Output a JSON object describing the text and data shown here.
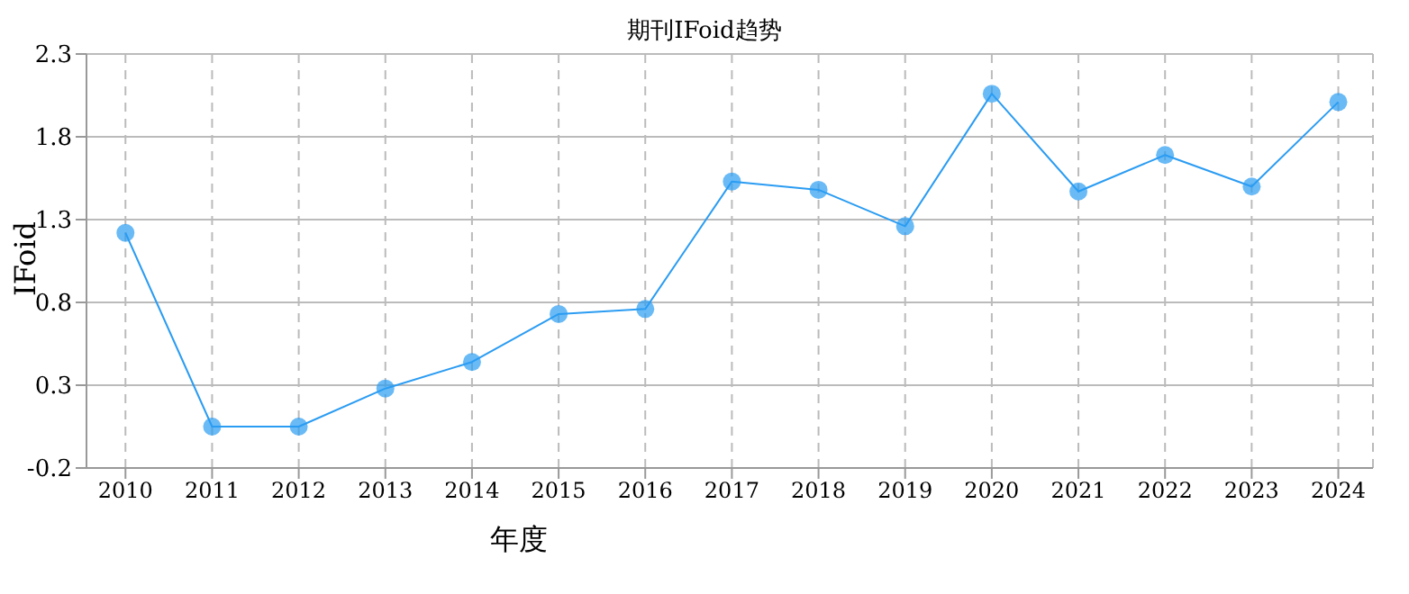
{
  "chart_data": {
    "type": "line",
    "title": "期刊IFoid趋势",
    "xlabel": "年度",
    "ylabel": "IFoid",
    "categories": [
      "2010",
      "2011",
      "2012",
      "2013",
      "2014",
      "2015",
      "2016",
      "2017",
      "2018",
      "2019",
      "2020",
      "2021",
      "2022",
      "2023",
      "2024"
    ],
    "series": [
      {
        "color": "#2b9cf2",
        "values": [
          1.22,
          0.05,
          0.05,
          0.28,
          0.44,
          0.73,
          0.76,
          1.53,
          1.48,
          1.26,
          2.06,
          1.47,
          1.69,
          1.5,
          2.01
        ]
      }
    ],
    "ylim": [
      -0.2,
      2.3
    ],
    "yticks": [
      -0.2,
      0.3,
      0.8,
      1.3,
      1.8,
      2.3
    ],
    "grid": true,
    "marker": "circle",
    "line_style": "solid"
  }
}
